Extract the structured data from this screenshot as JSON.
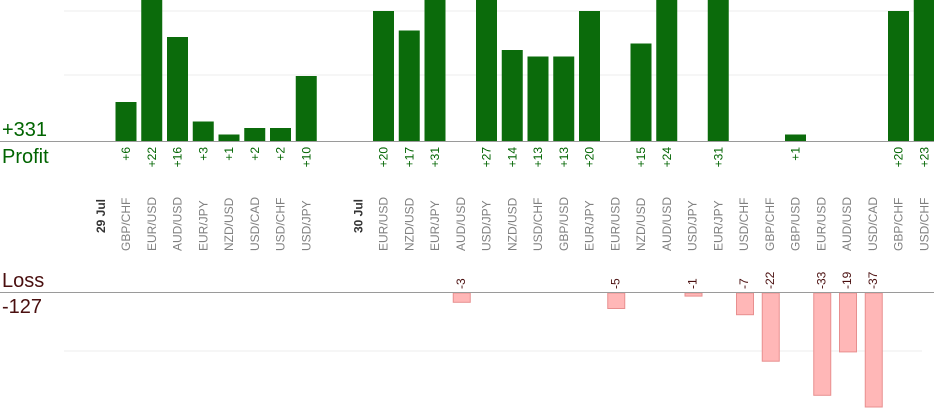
{
  "chart_data": {
    "type": "bar",
    "profit_total": "+331",
    "profit_label": "Profit",
    "loss_label": "Loss",
    "loss_total": "-127",
    "colors": {
      "profit_bar": "#0b6b0b",
      "loss_bar": "#ffb7b7",
      "loss_bar_border": "#e88f8f",
      "profit_text": "#006400",
      "loss_text": "#4a0f0f"
    },
    "groups": [
      {
        "date": "29 Jul",
        "bars": [
          {
            "pair": "GBP/CHF",
            "value": 6,
            "label": "+6"
          },
          {
            "pair": "EUR/USD",
            "value": 22,
            "label": "+22"
          },
          {
            "pair": "AUD/USD",
            "value": 16,
            "label": "+16"
          },
          {
            "pair": "EUR/JPY",
            "value": 3,
            "label": "+3"
          },
          {
            "pair": "NZD/USD",
            "value": 1,
            "label": "+1"
          },
          {
            "pair": "USD/CAD",
            "value": 2,
            "label": "+2"
          },
          {
            "pair": "USD/CHF",
            "value": 2,
            "label": "+2"
          },
          {
            "pair": "USD/JPY",
            "value": 10,
            "label": "+10"
          }
        ]
      },
      {
        "date": "30 Jul",
        "bars": [
          {
            "pair": "EUR/USD",
            "value": 20,
            "label": "+20"
          },
          {
            "pair": "NZD/USD",
            "value": 17,
            "label": "+17"
          },
          {
            "pair": "EUR/JPY",
            "value": 31,
            "label": "+31"
          },
          {
            "pair": "AUD/USD",
            "value": -3,
            "label": "-3"
          },
          {
            "pair": "USD/JPY",
            "value": 27,
            "label": "+27"
          },
          {
            "pair": "NZD/USD",
            "value": 14,
            "label": "+14"
          },
          {
            "pair": "USD/CHF",
            "value": 13,
            "label": "+13"
          },
          {
            "pair": "GBP/USD",
            "value": 13,
            "label": "+13"
          },
          {
            "pair": "EUR/JPY",
            "value": 20,
            "label": "+20"
          },
          {
            "pair": "EUR/USD",
            "value": -5,
            "label": "-5"
          },
          {
            "pair": "NZD/USD",
            "value": 15,
            "label": "+15"
          },
          {
            "pair": "AUD/USD",
            "value": 24,
            "label": "+24"
          },
          {
            "pair": "USD/JPY",
            "value": -1,
            "label": "-1"
          },
          {
            "pair": "EUR/JPY",
            "value": 31,
            "label": "+31"
          },
          {
            "pair": "USD/CHF",
            "value": -7,
            "label": "-7"
          },
          {
            "pair": "GBP/CHF",
            "value": -22,
            "label": "-22"
          },
          {
            "pair": "GBP/USD",
            "value": 1,
            "label": "+1"
          },
          {
            "pair": "EUR/USD",
            "value": -33,
            "label": "-33"
          },
          {
            "pair": "AUD/USD",
            "value": -19,
            "label": "-19"
          },
          {
            "pair": "USD/CAD",
            "value": -37,
            "label": "-37"
          },
          {
            "pair": "GBP/CHF",
            "value": 20,
            "label": "+20"
          },
          {
            "pair": "USD/CHF",
            "value": 23,
            "label": "+23"
          }
        ]
      }
    ]
  }
}
